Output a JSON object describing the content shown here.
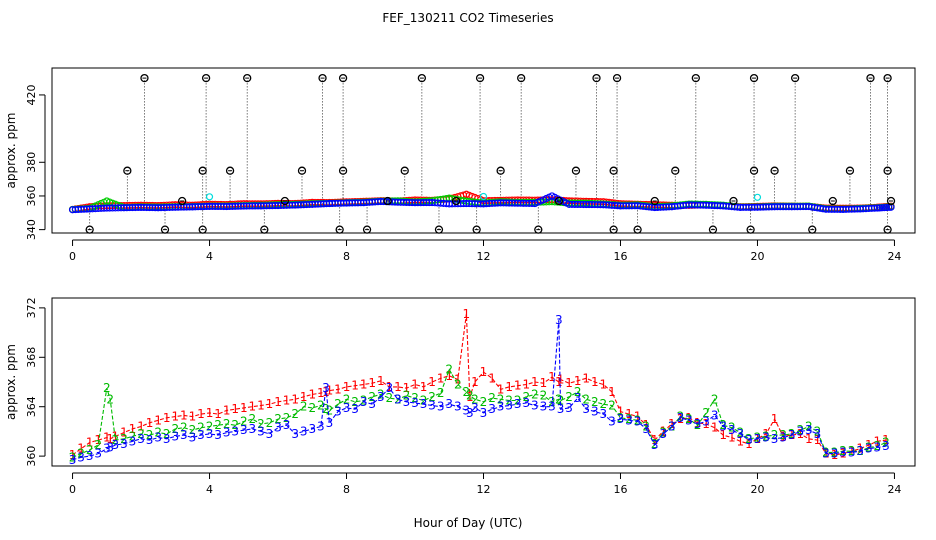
{
  "title": "FEF_130211  CO2 Timeseries",
  "xlabel": "Hour of Day (UTC)",
  "chart_data": [
    {
      "type": "scatter",
      "panel": "top",
      "ylabel": "approx. ppm",
      "xlim": [
        -0.6,
        24.6
      ],
      "ylim": [
        338,
        436
      ],
      "xticks": [
        0,
        4,
        8,
        12,
        16,
        20,
        24
      ],
      "yticks": [
        340,
        360,
        380,
        420
      ],
      "series": [
        {
          "name": "black",
          "color": "#000000",
          "marker": "circle-cross",
          "x": [
            0.5,
            1.6,
            2.1,
            2.7,
            3.2,
            3.8,
            3.8,
            3.9,
            4.6,
            5.1,
            5.6,
            6.2,
            6.7,
            7.3,
            7.8,
            7.9,
            7.9,
            8.6,
            9.2,
            9.7,
            10.2,
            10.7,
            11.2,
            11.8,
            11.9,
            12.5,
            13.1,
            13.6,
            14.2,
            14.7,
            15.3,
            15.8,
            15.8,
            15.9,
            16.5,
            17.0,
            17.6,
            18.2,
            18.7,
            19.3,
            19.8,
            19.9,
            19.9,
            20.5,
            21.1,
            21.6,
            22.2,
            22.7,
            23.3,
            23.8,
            23.8,
            23.8,
            23.9
          ],
          "y": [
            340,
            375,
            430,
            340,
            357,
            340,
            375,
            430,
            375,
            430,
            340,
            357,
            375,
            430,
            340,
            375,
            430,
            340,
            357,
            375,
            430,
            340,
            357,
            340,
            430,
            375,
            430,
            340,
            357,
            375,
            430,
            340,
            375,
            430,
            340,
            357,
            375,
            430,
            340,
            357,
            340,
            375,
            430,
            375,
            430,
            340,
            357,
            375,
            430,
            340,
            375,
            430,
            357
          ]
        },
        {
          "name": "red",
          "color": "#ff0000",
          "marker": "circle",
          "x": [
            0.0,
            0.5,
            1.0,
            1.5,
            2.0,
            2.5,
            3.0,
            3.5,
            4.0,
            4.5,
            5.0,
            5.5,
            6.0,
            6.5,
            7.0,
            7.5,
            8.0,
            8.5,
            9.0,
            9.5,
            10.0,
            10.5,
            11.0,
            11.5,
            12.0,
            12.5,
            13.0,
            13.5,
            14.0,
            14.5,
            15.0,
            15.5,
            16.0,
            16.5,
            17.0,
            17.5,
            18.0,
            18.5,
            19.0,
            19.5,
            20.0,
            20.5,
            21.0,
            21.5,
            22.0,
            22.5,
            23.0,
            23.5,
            23.9
          ],
          "y": [
            352.0,
            353.6,
            354.2,
            354.3,
            354.5,
            354.3,
            354.8,
            354.5,
            355.1,
            354.9,
            355.4,
            355.3,
            355.6,
            355.5,
            356.2,
            356.1,
            356.5,
            356.8,
            357.2,
            357.0,
            357.6,
            357.4,
            358.2,
            361.0,
            357.2,
            357.4,
            357.6,
            357.5,
            357.8,
            357.1,
            356.8,
            356.6,
            355.4,
            355.1,
            354.8,
            354.5,
            354.4,
            354.7,
            354.3,
            353.6,
            353.8,
            354.1,
            354.0,
            353.9,
            352.8,
            352.7,
            352.8,
            353.3,
            353.9
          ]
        },
        {
          "name": "green",
          "color": "#00cc00",
          "marker": "circle",
          "x": [
            0.0,
            0.5,
            1.0,
            1.5,
            2.0,
            2.5,
            3.0,
            3.5,
            4.0,
            4.5,
            5.0,
            5.5,
            6.0,
            6.5,
            7.0,
            7.5,
            8.0,
            8.5,
            9.0,
            9.5,
            10.0,
            10.5,
            11.0,
            11.5,
            12.0,
            12.5,
            13.0,
            13.5,
            14.0,
            14.5,
            15.0,
            15.5,
            16.0,
            16.5,
            17.0,
            17.5,
            18.0,
            18.5,
            19.0,
            19.5,
            20.0,
            20.5,
            21.0,
            21.5,
            22.0,
            22.5,
            23.0,
            23.5,
            23.9
          ],
          "y": [
            352.0,
            352.6,
            357.0,
            353.2,
            353.5,
            353.4,
            353.6,
            353.7,
            354.0,
            354.0,
            354.3,
            354.5,
            354.8,
            355.0,
            355.4,
            355.6,
            356.0,
            356.3,
            356.9,
            357.1,
            356.4,
            357.2,
            358.7,
            356.9,
            355.8,
            356.6,
            356.2,
            356.2,
            356.6,
            355.8,
            355.7,
            355.2,
            354.5,
            354.7,
            353.6,
            354.1,
            355.2,
            355.0,
            354.5,
            353.4,
            353.5,
            353.9,
            353.9,
            354.0,
            352.4,
            352.2,
            352.6,
            353.0,
            353.6
          ]
        },
        {
          "name": "blue",
          "color": "#0000ff",
          "marker": "circle",
          "x": [
            0.0,
            0.5,
            1.0,
            1.5,
            2.0,
            2.5,
            3.0,
            3.5,
            4.0,
            4.5,
            5.0,
            5.5,
            6.0,
            6.5,
            7.0,
            7.5,
            8.0,
            8.5,
            9.0,
            9.5,
            10.0,
            10.5,
            11.0,
            11.5,
            12.0,
            12.5,
            13.0,
            13.5,
            14.0,
            14.5,
            15.0,
            15.5,
            16.0,
            16.5,
            17.0,
            17.5,
            18.0,
            18.5,
            19.0,
            19.5,
            20.0,
            20.5,
            21.0,
            21.5,
            22.0,
            22.5,
            23.0,
            23.5,
            23.9
          ],
          "y": [
            351.8,
            352.3,
            352.8,
            353.0,
            353.2,
            353.0,
            353.3,
            353.5,
            353.8,
            353.7,
            354.0,
            354.1,
            354.3,
            354.6,
            355.0,
            355.5,
            355.8,
            356.0,
            356.7,
            356.3,
            356.0,
            356.1,
            355.3,
            355.5,
            355.3,
            355.9,
            355.7,
            355.5,
            360.0,
            355.0,
            354.9,
            354.8,
            354.1,
            354.2,
            353.1,
            353.6,
            354.7,
            354.5,
            354.1,
            353.2,
            353.3,
            353.6,
            353.6,
            353.7,
            352.1,
            352.0,
            352.3,
            352.8,
            353.3
          ]
        },
        {
          "name": "cyan",
          "color": "#00dddd",
          "marker": "circle",
          "x": [
            4.0,
            12.0,
            20.0
          ],
          "y": [
            359.5,
            359.7,
            359.2
          ]
        }
      ]
    },
    {
      "type": "line",
      "panel": "bottom",
      "ylabel": "approx. ppm",
      "xlim": [
        -0.6,
        24.6
      ],
      "ylim": [
        359.2,
        372.8
      ],
      "xticks": [
        0,
        4,
        8,
        12,
        16,
        20,
        24
      ],
      "yticks": [
        360,
        364,
        368,
        372
      ],
      "x": [
        0.0,
        0.25,
        0.5,
        0.75,
        1.0,
        1.1,
        1.25,
        1.5,
        1.75,
        2.0,
        2.25,
        2.5,
        2.75,
        3.0,
        3.25,
        3.5,
        3.75,
        4.0,
        4.25,
        4.5,
        4.75,
        5.0,
        5.25,
        5.5,
        5.75,
        6.0,
        6.25,
        6.5,
        6.75,
        7.0,
        7.25,
        7.4,
        7.5,
        7.75,
        8.0,
        8.25,
        8.5,
        8.75,
        9.0,
        9.25,
        9.5,
        9.75,
        10.0,
        10.25,
        10.5,
        10.75,
        11.0,
        11.25,
        11.5,
        11.6,
        11.75,
        12.0,
        12.25,
        12.5,
        12.75,
        13.0,
        13.25,
        13.5,
        13.75,
        14.0,
        14.2,
        14.25,
        14.5,
        14.75,
        15.0,
        15.25,
        15.5,
        15.75,
        16.0,
        16.25,
        16.5,
        16.75,
        17.0,
        17.25,
        17.5,
        17.75,
        18.0,
        18.25,
        18.5,
        18.75,
        19.0,
        19.25,
        19.5,
        19.75,
        20.0,
        20.25,
        20.5,
        20.75,
        21.0,
        21.25,
        21.5,
        21.75,
        22.0,
        22.25,
        22.5,
        22.75,
        23.0,
        23.25,
        23.5,
        23.75
      ],
      "series": [
        {
          "name": "1",
          "color": "#ff0000",
          "values": [
            360.1,
            360.6,
            361.1,
            361.3,
            361.5,
            361.4,
            361.6,
            361.9,
            362.2,
            362.4,
            362.7,
            362.9,
            363.1,
            363.2,
            363.3,
            363.2,
            363.4,
            363.5,
            363.4,
            363.7,
            363.8,
            363.9,
            364.0,
            364.1,
            364.2,
            364.4,
            364.5,
            364.6,
            364.8,
            365.0,
            365.1,
            365.2,
            365.3,
            365.4,
            365.6,
            365.7,
            365.8,
            365.9,
            366.1,
            365.6,
            365.6,
            365.5,
            365.8,
            365.6,
            366.0,
            366.3,
            366.5,
            366.2,
            371.5,
            364.8,
            366.0,
            366.8,
            366.3,
            365.4,
            365.6,
            365.7,
            365.8,
            366.0,
            365.9,
            366.4,
            366.0,
            366.2,
            365.9,
            366.1,
            366.3,
            366.0,
            365.8,
            365.2,
            363.6,
            363.4,
            363.2,
            362.5,
            361.3,
            362.0,
            362.6,
            363.0,
            363.1,
            362.7,
            362.6,
            362.3,
            361.7,
            361.5,
            361.2,
            361.0,
            361.4,
            361.8,
            363.0,
            361.6,
            361.7,
            361.8,
            361.4,
            361.3,
            360.2,
            360.1,
            360.2,
            360.4,
            360.6,
            360.9,
            361.2,
            361.3
          ]
        },
        {
          "name": "2",
          "color": "#00bb00",
          "values": [
            359.9,
            360.2,
            360.5,
            360.9,
            365.5,
            364.6,
            361.3,
            361.4,
            361.6,
            361.8,
            361.7,
            361.9,
            361.8,
            362.2,
            362.3,
            362.1,
            362.3,
            362.4,
            362.5,
            362.6,
            362.5,
            362.8,
            363.0,
            362.6,
            362.7,
            363.0,
            363.1,
            363.4,
            364.0,
            363.9,
            364.1,
            363.8,
            363.7,
            364.2,
            364.6,
            364.4,
            364.5,
            364.8,
            365.0,
            364.7,
            364.6,
            364.9,
            364.7,
            364.5,
            364.8,
            365.1,
            367.0,
            365.8,
            365.2,
            364.9,
            364.6,
            364.4,
            364.7,
            364.6,
            364.5,
            364.5,
            364.8,
            365.0,
            364.9,
            364.4,
            364.6,
            364.5,
            364.8,
            365.2,
            364.6,
            364.4,
            364.2,
            364.1,
            363.1,
            363.0,
            362.9,
            362.4,
            361.0,
            361.9,
            362.4,
            363.2,
            363.0,
            362.5,
            363.5,
            364.6,
            362.5,
            362.3,
            361.9,
            361.4,
            361.5,
            361.6,
            361.7,
            361.7,
            361.8,
            362.1,
            362.4,
            362.0,
            360.3,
            360.3,
            360.4,
            360.4,
            360.4,
            360.7,
            360.8,
            361.1
          ]
        },
        {
          "name": "3",
          "color": "#0000ff",
          "values": [
            359.7,
            359.9,
            360.0,
            360.2,
            360.6,
            360.7,
            360.9,
            361.0,
            361.2,
            361.4,
            361.3,
            361.5,
            361.4,
            361.6,
            361.7,
            361.5,
            361.7,
            361.8,
            361.7,
            361.9,
            362.0,
            362.1,
            362.2,
            362.0,
            361.8,
            362.3,
            362.5,
            361.8,
            362.0,
            362.2,
            362.4,
            365.5,
            362.7,
            363.6,
            363.9,
            363.8,
            364.4,
            364.2,
            364.8,
            365.5,
            364.6,
            364.4,
            364.3,
            364.2,
            364.1,
            364.0,
            364.2,
            364.0,
            363.7,
            363.5,
            363.9,
            363.5,
            363.8,
            364.0,
            364.1,
            364.2,
            364.3,
            364.1,
            364.0,
            364.0,
            371.0,
            363.8,
            363.9,
            364.7,
            363.8,
            363.6,
            363.4,
            362.8,
            363.0,
            362.9,
            362.8,
            362.2,
            360.9,
            361.8,
            362.4,
            363.1,
            362.9,
            362.6,
            362.8,
            363.3,
            362.4,
            362.1,
            361.8,
            361.3,
            361.4,
            361.5,
            361.4,
            361.5,
            361.7,
            362.0,
            362.1,
            361.8,
            360.2,
            360.2,
            360.3,
            360.3,
            360.4,
            360.6,
            360.7,
            360.8
          ]
        }
      ]
    }
  ]
}
